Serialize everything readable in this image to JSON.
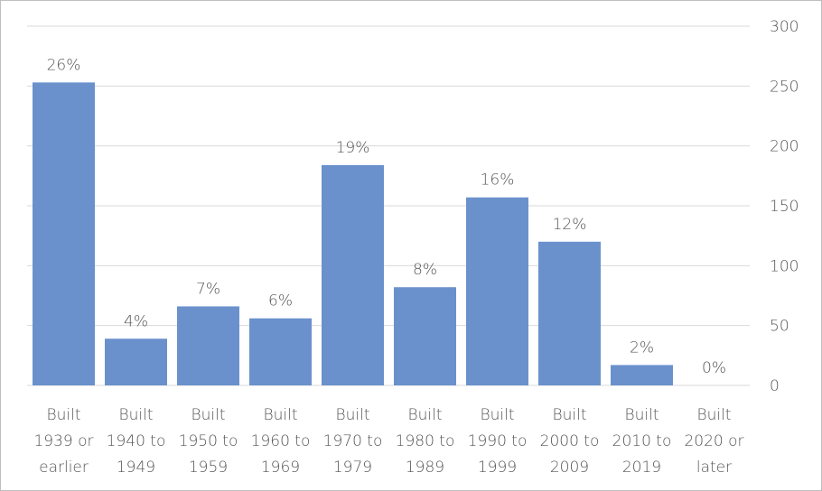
{
  "chart_data": {
    "type": "bar",
    "categories": [
      [
        "Built",
        "1939 or",
        "earlier"
      ],
      [
        "Built",
        "1940 to",
        "1949"
      ],
      [
        "Built",
        "1950 to",
        "1959"
      ],
      [
        "Built",
        "1960 to",
        "1969"
      ],
      [
        "Built",
        "1970 to",
        "1979"
      ],
      [
        "Built",
        "1980 to",
        "1989"
      ],
      [
        "Built",
        "1990 to",
        "1999"
      ],
      [
        "Built",
        "2000 to",
        "2009"
      ],
      [
        "Built",
        "2010 to",
        "2019"
      ],
      [
        "Built",
        "2020 or",
        "later"
      ]
    ],
    "values": [
      253,
      39,
      66,
      56,
      184,
      82,
      157,
      120,
      17,
      0
    ],
    "data_labels": [
      "26%",
      "4%",
      "7%",
      "6%",
      "19%",
      "8%",
      "16%",
      "12%",
      "2%",
      "0%"
    ],
    "ylim": [
      0,
      300
    ],
    "yticks": [
      0,
      50,
      100,
      150,
      200,
      250,
      300
    ],
    "y_axis_side": "right",
    "grid": true,
    "title": "",
    "xlabel": "",
    "ylabel": "",
    "bar_color": "#6a91cc",
    "grid_color": "#d9d9d9",
    "text_color": "#555555",
    "border_color": "#bfbfbf"
  }
}
